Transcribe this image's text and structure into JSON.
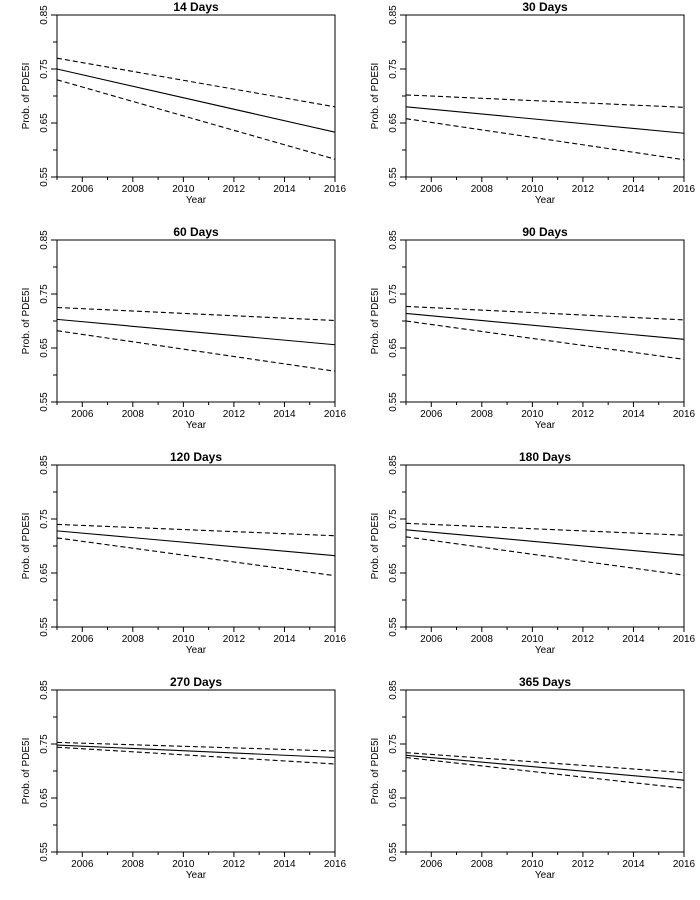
{
  "chart_data": [
    {
      "type": "line",
      "title": "14 Days",
      "xlabel": "Year",
      "ylabel": "Prob. of PDE5I",
      "x": [
        2005,
        2016
      ],
      "xlim": [
        2005,
        2016
      ],
      "ylim": [
        0.55,
        0.85
      ],
      "xticks": [
        "2006",
        "2008",
        "2010",
        "2012",
        "2014",
        "2016"
      ],
      "yticks": [
        "0.55",
        "0.65",
        "0.75",
        "0.85"
      ],
      "series": [
        {
          "role": "estimate",
          "style": "solid",
          "values": [
            0.75,
            0.633
          ]
        },
        {
          "role": "upper",
          "style": "dashed",
          "values": [
            0.77,
            0.68
          ]
        },
        {
          "role": "lower",
          "style": "dashed",
          "values": [
            0.73,
            0.583
          ]
        }
      ]
    },
    {
      "type": "line",
      "title": "30 Days",
      "xlabel": "Year",
      "ylabel": "Prob. of PDE5I",
      "x": [
        2005,
        2016
      ],
      "xlim": [
        2005,
        2016
      ],
      "ylim": [
        0.55,
        0.85
      ],
      "xticks": [
        "2006",
        "2008",
        "2010",
        "2012",
        "2014",
        "2016"
      ],
      "yticks": [
        "0.55",
        "0.65",
        "0.75",
        "0.85"
      ],
      "series": [
        {
          "role": "estimate",
          "style": "solid",
          "values": [
            0.68,
            0.631
          ]
        },
        {
          "role": "upper",
          "style": "dashed",
          "values": [
            0.702,
            0.679
          ]
        },
        {
          "role": "lower",
          "style": "dashed",
          "values": [
            0.658,
            0.582
          ]
        }
      ]
    },
    {
      "type": "line",
      "title": "60 Days",
      "xlabel": "Year",
      "ylabel": "Prob. of PDE5I",
      "x": [
        2005,
        2016
      ],
      "xlim": [
        2005,
        2016
      ],
      "ylim": [
        0.55,
        0.85
      ],
      "xticks": [
        "2006",
        "2008",
        "2010",
        "2012",
        "2014",
        "2016"
      ],
      "yticks": [
        "0.55",
        "0.65",
        "0.75",
        "0.85"
      ],
      "series": [
        {
          "role": "estimate",
          "style": "solid",
          "values": [
            0.703,
            0.656
          ]
        },
        {
          "role": "upper",
          "style": "dashed",
          "values": [
            0.725,
            0.701
          ]
        },
        {
          "role": "lower",
          "style": "dashed",
          "values": [
            0.682,
            0.607
          ]
        }
      ]
    },
    {
      "type": "line",
      "title": "90 Days",
      "xlabel": "Year",
      "ylabel": "Prob. of PDE5I",
      "x": [
        2005,
        2016
      ],
      "xlim": [
        2005,
        2016
      ],
      "ylim": [
        0.55,
        0.85
      ],
      "xticks": [
        "2006",
        "2008",
        "2010",
        "2012",
        "2014",
        "2016"
      ],
      "yticks": [
        "0.55",
        "0.65",
        "0.75",
        "0.85"
      ],
      "series": [
        {
          "role": "estimate",
          "style": "solid",
          "values": [
            0.714,
            0.666
          ]
        },
        {
          "role": "upper",
          "style": "dashed",
          "values": [
            0.727,
            0.702
          ]
        },
        {
          "role": "lower",
          "style": "dashed",
          "values": [
            0.7,
            0.629
          ]
        }
      ]
    },
    {
      "type": "line",
      "title": "120 Days",
      "xlabel": "Year",
      "ylabel": "Prob. of PDE5I",
      "x": [
        2005,
        2016
      ],
      "xlim": [
        2005,
        2016
      ],
      "ylim": [
        0.55,
        0.85
      ],
      "xticks": [
        "2006",
        "2008",
        "2010",
        "2012",
        "2014",
        "2016"
      ],
      "yticks": [
        "0.55",
        "0.65",
        "0.75",
        "0.85"
      ],
      "series": [
        {
          "role": "estimate",
          "style": "solid",
          "values": [
            0.728,
            0.682
          ]
        },
        {
          "role": "upper",
          "style": "dashed",
          "values": [
            0.74,
            0.719
          ]
        },
        {
          "role": "lower",
          "style": "dashed",
          "values": [
            0.715,
            0.645
          ]
        }
      ]
    },
    {
      "type": "line",
      "title": "180 Days",
      "xlabel": "Year",
      "ylabel": "Prob. of PDE5I",
      "x": [
        2005,
        2016
      ],
      "xlim": [
        2005,
        2016
      ],
      "ylim": [
        0.55,
        0.85
      ],
      "xticks": [
        "2006",
        "2008",
        "2010",
        "2012",
        "2014",
        "2016"
      ],
      "yticks": [
        "0.55",
        "0.65",
        "0.75",
        "0.85"
      ],
      "series": [
        {
          "role": "estimate",
          "style": "solid",
          "values": [
            0.73,
            0.683
          ]
        },
        {
          "role": "upper",
          "style": "dashed",
          "values": [
            0.742,
            0.72
          ]
        },
        {
          "role": "lower",
          "style": "dashed",
          "values": [
            0.717,
            0.646
          ]
        }
      ]
    },
    {
      "type": "line",
      "title": "270 Days",
      "xlabel": "Year",
      "ylabel": "Prob. of PDE5I",
      "x": [
        2005,
        2016
      ],
      "xlim": [
        2005,
        2016
      ],
      "ylim": [
        0.55,
        0.85
      ],
      "xticks": [
        "2006",
        "2008",
        "2010",
        "2012",
        "2014",
        "2016"
      ],
      "yticks": [
        "0.55",
        "0.65",
        "0.75",
        "0.85"
      ],
      "series": [
        {
          "role": "estimate",
          "style": "solid",
          "values": [
            0.748,
            0.725
          ]
        },
        {
          "role": "upper",
          "style": "dashed",
          "values": [
            0.753,
            0.737
          ]
        },
        {
          "role": "lower",
          "style": "dashed",
          "values": [
            0.744,
            0.713
          ]
        }
      ]
    },
    {
      "type": "line",
      "title": "365 Days",
      "xlabel": "Year",
      "ylabel": "Prob. of PDE5I",
      "x": [
        2005,
        2016
      ],
      "xlim": [
        2005,
        2016
      ],
      "ylim": [
        0.55,
        0.85
      ],
      "xticks": [
        "2006",
        "2008",
        "2010",
        "2012",
        "2014",
        "2016"
      ],
      "yticks": [
        "0.55",
        "0.65",
        "0.75",
        "0.85"
      ],
      "series": [
        {
          "role": "estimate",
          "style": "solid",
          "values": [
            0.729,
            0.683
          ]
        },
        {
          "role": "upper",
          "style": "dashed",
          "values": [
            0.734,
            0.697
          ]
        },
        {
          "role": "lower",
          "style": "dashed",
          "values": [
            0.725,
            0.668
          ]
        }
      ]
    }
  ]
}
